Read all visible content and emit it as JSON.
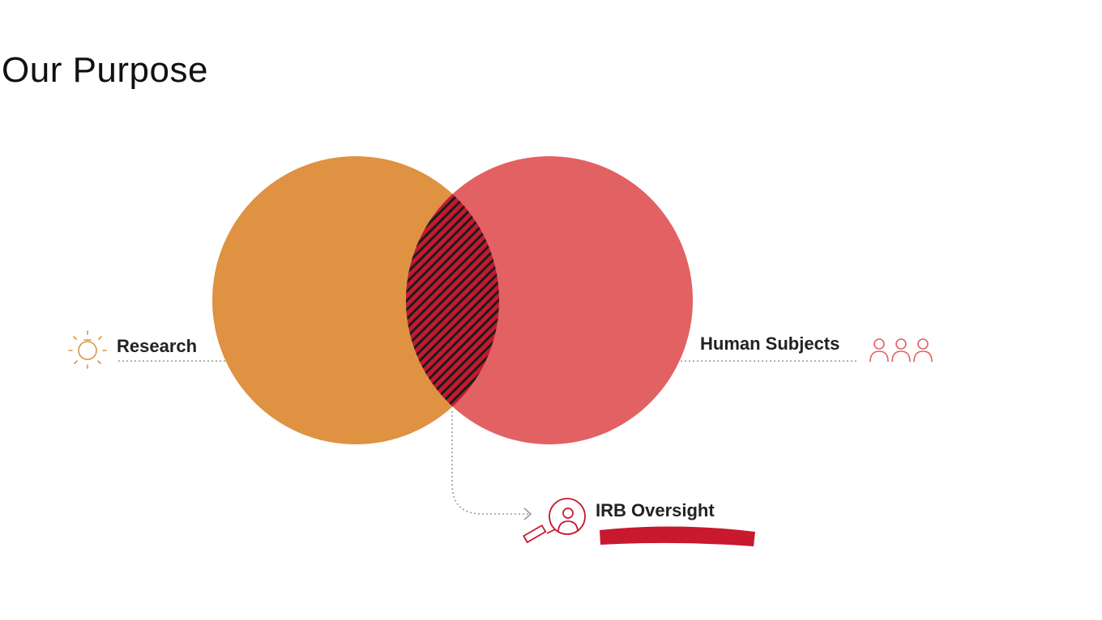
{
  "title": "Our Purpose",
  "diagram": {
    "type": "venn",
    "left_circle": {
      "label": "Research",
      "color": "#DE9242",
      "icon": "lightbulb-icon"
    },
    "right_circle": {
      "label": "Human Subjects",
      "color": "#E26163",
      "icon": "people-icon"
    },
    "overlap": {
      "label": "IRB Oversight",
      "fill": "#C4192F",
      "stripe": "#1C1C1C",
      "icon": "magnifier-person-icon",
      "underline_color": "#C8192F"
    }
  }
}
